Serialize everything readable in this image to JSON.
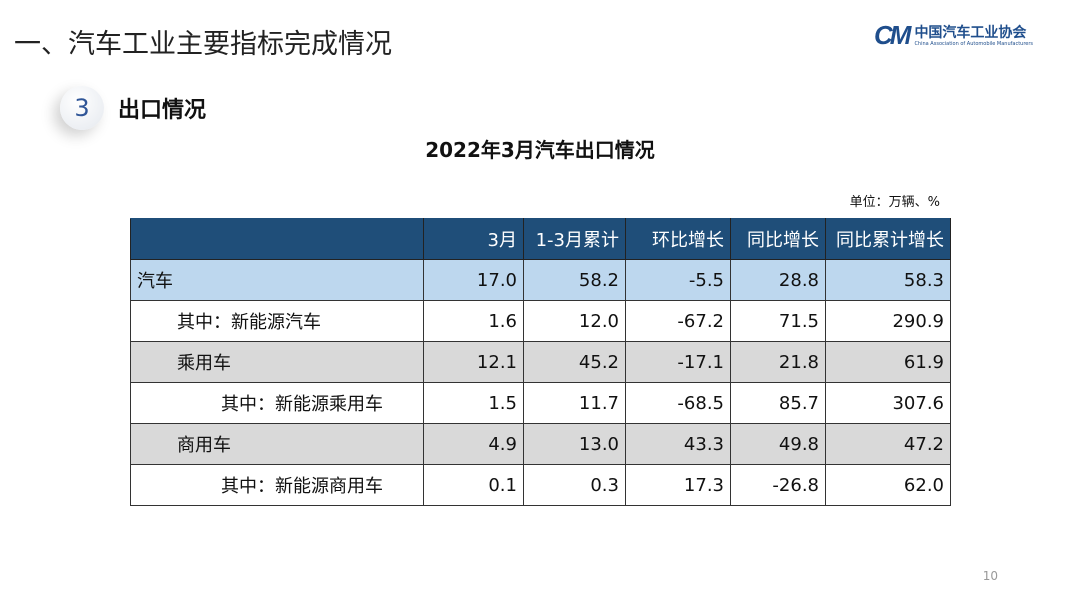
{
  "slide_title": "一、汽车工业主要指标完成情况",
  "logo": {
    "mark": "CAM",
    "cn": "中国汽车工业协会",
    "en": "China Association of Automobile Manufacturers"
  },
  "section": {
    "number": "3",
    "label": "出口情况"
  },
  "table_title": "2022年3月汽车出口情况",
  "unit": "单位：万辆、%",
  "columns": [
    "",
    "3月",
    "1-3月累计",
    "环比增长",
    "同比增长",
    "同比累计增长"
  ],
  "rows": [
    {
      "name": "汽车",
      "values": [
        "17.0",
        "58.2",
        "-5.5",
        "28.8",
        "58.3"
      ]
    },
    {
      "name": "其中：新能源汽车",
      "values": [
        "1.6",
        "12.0",
        "-67.2",
        "71.5",
        "290.9"
      ]
    },
    {
      "name": "乘用车",
      "values": [
        "12.1",
        "45.2",
        "-17.1",
        "21.8",
        "61.9"
      ]
    },
    {
      "name": "其中：新能源乘用车",
      "values": [
        "1.5",
        "11.7",
        "-68.5",
        "85.7",
        "307.6"
      ]
    },
    {
      "name": "商用车",
      "values": [
        "4.9",
        "13.0",
        "43.3",
        "49.8",
        "47.2"
      ]
    },
    {
      "name": "其中：新能源商用车",
      "values": [
        "0.1",
        "0.3",
        "17.3",
        "-26.8",
        "62.0"
      ]
    }
  ],
  "page_number": "10",
  "colors": {
    "header": "#1f4e79",
    "highlight": "#bdd7ee",
    "gray": "#d9d9d9"
  }
}
